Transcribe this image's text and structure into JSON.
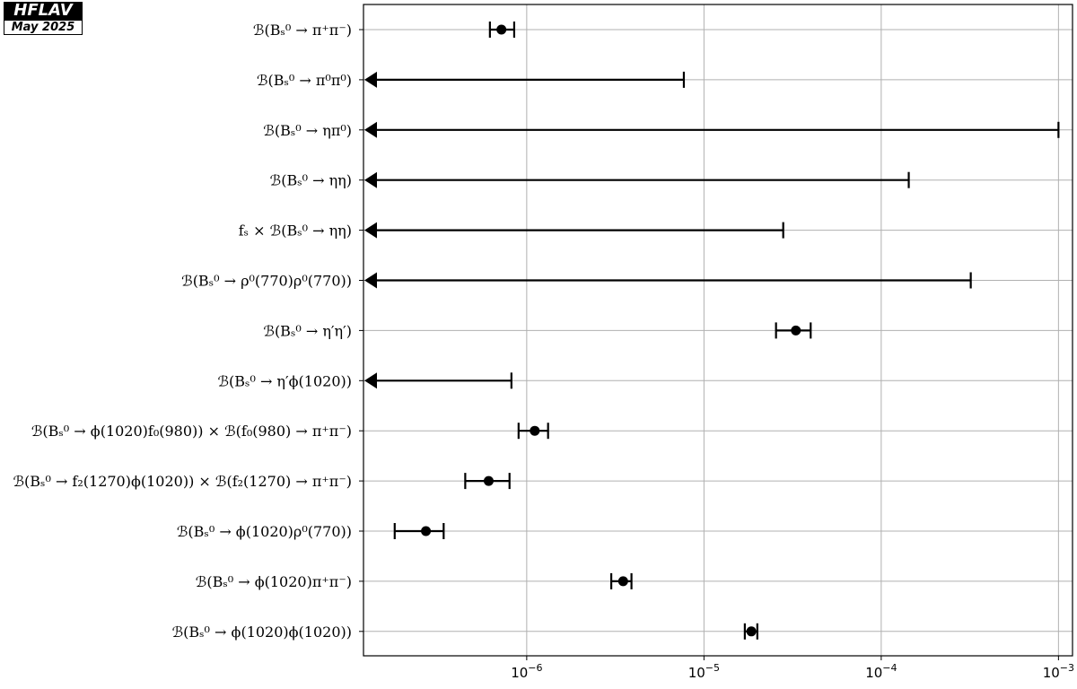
{
  "logo": {
    "name": "HFLAV",
    "date": "May 2025"
  },
  "chart_data": {
    "type": "scatter",
    "x_scale": "log",
    "xlim": [
      1.2e-07,
      0.0012
    ],
    "grid": true,
    "x_ticks": [
      {
        "value": 1e-06,
        "base": "10",
        "exp": "−6"
      },
      {
        "value": 1e-05,
        "base": "10",
        "exp": "−5"
      },
      {
        "value": 0.0001,
        "base": "10",
        "exp": "−4"
      },
      {
        "value": 0.001,
        "base": "10",
        "exp": "−3"
      }
    ],
    "rows": [
      {
        "label": "ℬ(Bₛ⁰ → π⁺π⁻)",
        "kind": "measurement",
        "value": 7.2e-07,
        "low": 6.2e-07,
        "high": 8.5e-07
      },
      {
        "label": "ℬ(Bₛ⁰ → π⁰π⁰)",
        "kind": "upper_limit",
        "limit": 7.7e-06
      },
      {
        "label": "ℬ(Bₛ⁰ → ηπ⁰)",
        "kind": "upper_limit",
        "limit": 0.001
      },
      {
        "label": "ℬ(Bₛ⁰ → ηη)",
        "kind": "upper_limit",
        "limit": 0.000143
      },
      {
        "label": "fₛ × ℬ(Bₛ⁰ → ηη)",
        "kind": "upper_limit",
        "limit": 2.8e-05
      },
      {
        "label": "ℬ(Bₛ⁰ → ρ⁰(770)ρ⁰(770))",
        "kind": "upper_limit",
        "limit": 0.00032
      },
      {
        "label": "ℬ(Bₛ⁰ → η′η′)",
        "kind": "measurement",
        "value": 3.3e-05,
        "low": 2.55e-05,
        "high": 4e-05
      },
      {
        "label": "ℬ(Bₛ⁰ → η′ϕ(1020))",
        "kind": "upper_limit",
        "limit": 8.2e-07
      },
      {
        "label": "ℬ(Bₛ⁰ → ϕ(1020)f₀(980)) × ℬ(f₀(980) → π⁺π⁻)",
        "kind": "measurement",
        "value": 1.11e-06,
        "low": 9e-07,
        "high": 1.32e-06
      },
      {
        "label": "ℬ(Bₛ⁰ → f₂(1270)ϕ(1020)) × ℬ(f₂(1270) → π⁺π⁻)",
        "kind": "measurement",
        "value": 6.1e-07,
        "low": 4.5e-07,
        "high": 8e-07
      },
      {
        "label": "ℬ(Bₛ⁰ → ϕ(1020)ρ⁰(770))",
        "kind": "measurement",
        "value": 2.7e-07,
        "low": 1.8e-07,
        "high": 3.4e-07
      },
      {
        "label": "ℬ(Bₛ⁰ → ϕ(1020)π⁺π⁻)",
        "kind": "measurement",
        "value": 3.5e-06,
        "low": 3e-06,
        "high": 3.9e-06
      },
      {
        "label": "ℬ(Bₛ⁰ → ϕ(1020)ϕ(1020))",
        "kind": "measurement",
        "value": 1.85e-05,
        "low": 1.7e-05,
        "high": 2e-05
      }
    ]
  }
}
